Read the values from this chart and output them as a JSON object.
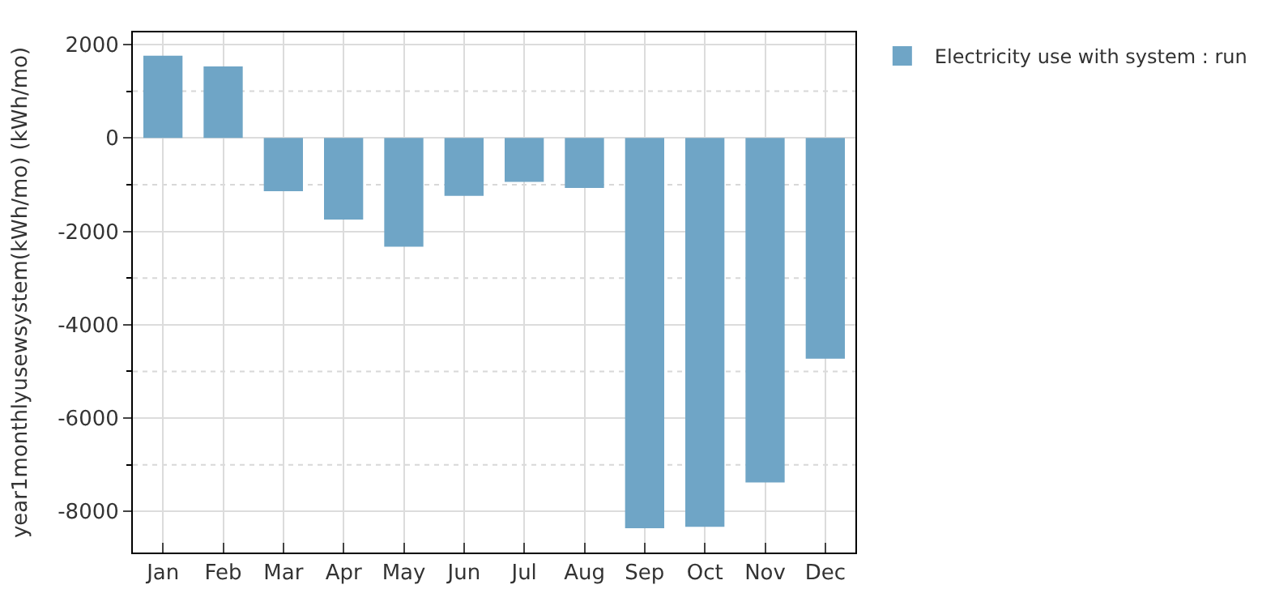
{
  "chart_data": {
    "type": "bar",
    "ylabel": "year1monthlyusewsystem(kWh/mo) (kWh/mo)",
    "categories": [
      "Jan",
      "Feb",
      "Mar",
      "Apr",
      "May",
      "Jun",
      "Jul",
      "Aug",
      "Sep",
      "Oct",
      "Nov",
      "Dec"
    ],
    "series": [
      {
        "name": "Electricity use with system : run",
        "color": "#6fa5c6",
        "values": [
          1760,
          1530,
          -1140,
          -1750,
          -2330,
          -1240,
          -940,
          -1070,
          -8360,
          -8330,
          -7380,
          -4730
        ]
      }
    ],
    "ylim": [
      -8880,
      2260
    ],
    "yticks": [
      -8000,
      {
        "value": -7000,
        "label": null
      },
      -6000,
      {
        "value": -5000,
        "label": null
      },
      -4000,
      {
        "value": -3000,
        "label": null
      },
      -2000,
      {
        "value": -1000,
        "label": null
      },
      0,
      {
        "value": 1000,
        "label": null
      },
      2000
    ],
    "grid": true,
    "legend": "top right"
  }
}
